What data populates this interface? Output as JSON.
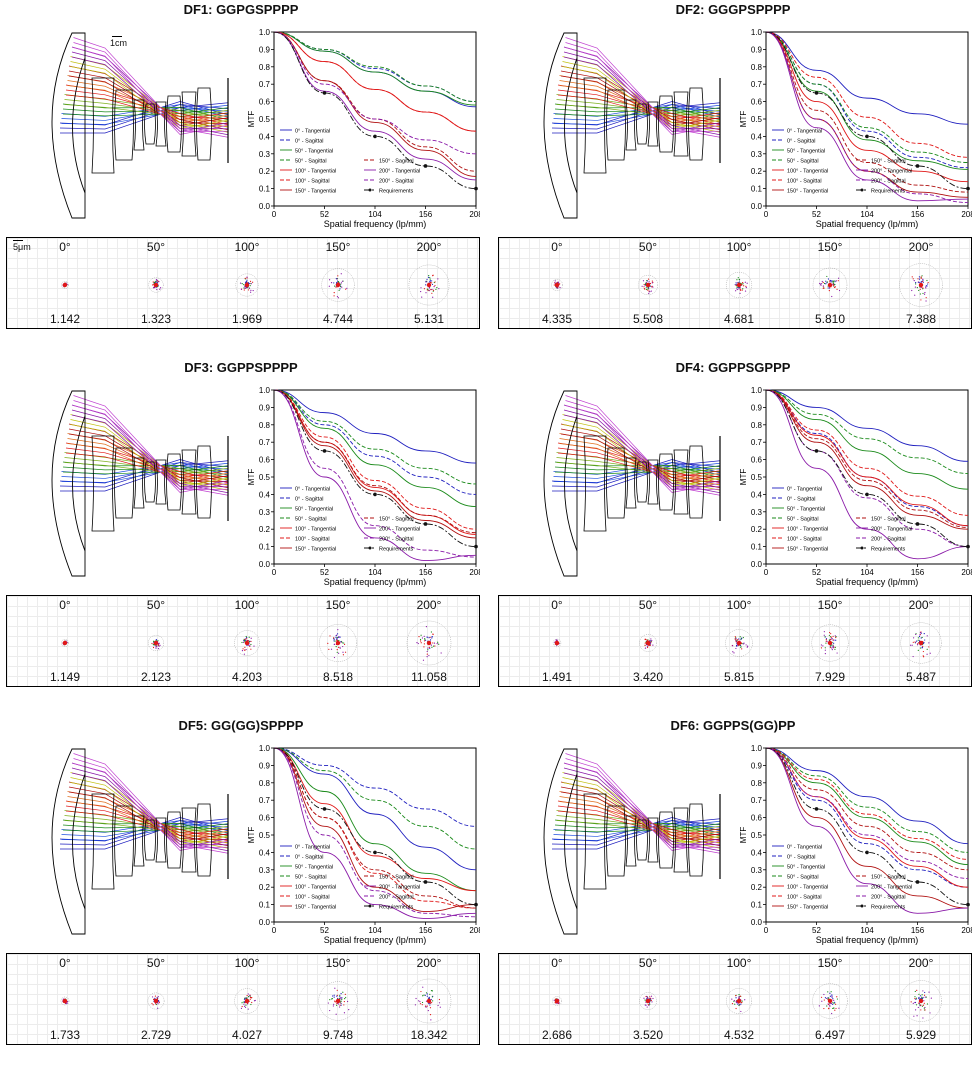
{
  "common": {
    "axis": {
      "xlabel": "Spatial frequency (lp/mm)",
      "ylabel": "MTF",
      "xticks": [
        "0",
        "52",
        "104",
        "156",
        "208"
      ],
      "yticks": [
        "0.0",
        "0.1",
        "0.2",
        "0.3",
        "0.4",
        "0.5",
        "0.6",
        "0.7",
        "0.8",
        "0.9",
        "1.0"
      ]
    },
    "scale_lens": "1cm",
    "scale_spot": "5μm",
    "legend": [
      "0° - Tangential",
      "0° - Sagittal",
      "50° - Tangential",
      "50° - Sagittal",
      "100° - Tangential",
      "100° - Sagittal",
      "150° - Tangential",
      "150° - Sagittal",
      "200° - Tangential",
      "200° - Sagittal",
      "Requirements"
    ],
    "field_angles": [
      "0°",
      "50°",
      "100°",
      "150°",
      "200°"
    ]
  },
  "colors": {
    "field0": "#1f1fbf",
    "field50": "#1a8a1a",
    "field100": "#e01818",
    "field150": "#b01010",
    "field200": "#8a1aa8",
    "requirements": "#111111"
  },
  "panels": [
    {
      "title": "DF1: GGPGSPPPP",
      "spot_rms": [
        "1.142",
        "1.323",
        "1.969",
        "4.744",
        "5.131"
      ]
    },
    {
      "title": "DF2: GGGPSPPPP",
      "spot_rms": [
        "4.335",
        "5.508",
        "4.681",
        "5.810",
        "7.388"
      ]
    },
    {
      "title": "DF3: GGPPSPPPP",
      "spot_rms": [
        "1.149",
        "2.123",
        "4.203",
        "8.518",
        "11.058"
      ]
    },
    {
      "title": "DF4: GGPPSGPPP",
      "spot_rms": [
        "1.491",
        "3.420",
        "5.815",
        "7.929",
        "5.487"
      ]
    },
    {
      "title": "DF5: GG(GG)SPPPP",
      "spot_rms": [
        "1.733",
        "2.729",
        "4.027",
        "9.748",
        "18.342"
      ]
    },
    {
      "title": "DF6: GGPPS(GG)PP",
      "spot_rms": [
        "2.686",
        "3.520",
        "4.532",
        "6.497",
        "5.929"
      ]
    }
  ],
  "chart_data": [
    {
      "type": "line",
      "title": "DF1: GGPGSPPPP",
      "xlabel": "Spatial frequency (lp/mm)",
      "ylabel": "MTF",
      "xlim": [
        0,
        208
      ],
      "ylim": [
        0,
        1
      ],
      "x": [
        0,
        52,
        104,
        156,
        208
      ],
      "series": [
        {
          "name": "0° - Tangential",
          "values": [
            1,
            0.89,
            0.77,
            0.66,
            0.57
          ]
        },
        {
          "name": "0° - Sagittal",
          "values": [
            1,
            0.9,
            0.79,
            0.69,
            0.6
          ]
        },
        {
          "name": "50° - Tangential",
          "values": [
            1,
            0.89,
            0.77,
            0.66,
            0.58
          ]
        },
        {
          "name": "50° - Sagittal",
          "values": [
            1,
            0.9,
            0.8,
            0.69,
            0.6
          ]
        },
        {
          "name": "100° - Tangential",
          "values": [
            1,
            0.83,
            0.67,
            0.54,
            0.43
          ]
        },
        {
          "name": "100° - Sagittal",
          "values": [
            1,
            0.83,
            0.67,
            0.54,
            0.43
          ]
        },
        {
          "name": "150° - Tangential",
          "values": [
            1,
            0.72,
            0.48,
            0.32,
            0.17
          ]
        },
        {
          "name": "150° - Sagittal",
          "values": [
            1,
            0.72,
            0.5,
            0.34,
            0.2
          ]
        },
        {
          "name": "200° - Tangential",
          "values": [
            1,
            0.66,
            0.43,
            0.27,
            0.15
          ]
        },
        {
          "name": "200° - Sagittal",
          "values": [
            1,
            0.7,
            0.5,
            0.38,
            0.3
          ]
        },
        {
          "name": "Requirements",
          "values": [
            1,
            0.65,
            0.4,
            0.23,
            0.1
          ]
        }
      ]
    },
    {
      "type": "line",
      "title": "DF2: GGGPSPPPP",
      "xlabel": "Spatial frequency (lp/mm)",
      "ylabel": "MTF",
      "xlim": [
        0,
        208
      ],
      "ylim": [
        0,
        1
      ],
      "x": [
        0,
        52,
        104,
        156,
        208
      ],
      "series": [
        {
          "name": "0° - Tangential",
          "values": [
            1,
            0.78,
            0.62,
            0.53,
            0.47
          ]
        },
        {
          "name": "0° - Sagittal",
          "values": [
            1,
            0.7,
            0.43,
            0.28,
            0.22
          ]
        },
        {
          "name": "50° - Tangential",
          "values": [
            1,
            0.66,
            0.38,
            0.26,
            0.21
          ]
        },
        {
          "name": "50° - Sagittal",
          "values": [
            1,
            0.7,
            0.45,
            0.31,
            0.25
          ]
        },
        {
          "name": "100° - Tangential",
          "values": [
            1,
            0.6,
            0.32,
            0.2,
            0.14
          ]
        },
        {
          "name": "100° - Sagittal",
          "values": [
            1,
            0.74,
            0.51,
            0.36,
            0.28
          ]
        },
        {
          "name": "150° - Tangential",
          "values": [
            1,
            0.5,
            0.2,
            0.08,
            0.05
          ]
        },
        {
          "name": "150° - Sagittal",
          "values": [
            1,
            0.55,
            0.25,
            0.12,
            0.08
          ]
        },
        {
          "name": "200° - Tangential",
          "values": [
            1,
            0.45,
            0.15,
            0.03,
            0.04
          ]
        },
        {
          "name": "200° - Sagittal",
          "values": [
            1,
            0.5,
            0.2,
            0.07,
            0.02
          ]
        },
        {
          "name": "Requirements",
          "values": [
            1,
            0.65,
            0.4,
            0.23,
            0.1
          ]
        }
      ]
    },
    {
      "type": "line",
      "title": "DF3: GGPPSPPPP",
      "xlabel": "Spatial frequency (lp/mm)",
      "ylabel": "MTF",
      "xlim": [
        0,
        208
      ],
      "ylim": [
        0,
        1
      ],
      "x": [
        0,
        52,
        104,
        156,
        208
      ],
      "series": [
        {
          "name": "0° - Tangential",
          "values": [
            1,
            0.87,
            0.75,
            0.65,
            0.58
          ]
        },
        {
          "name": "0° - Sagittal",
          "values": [
            1,
            0.8,
            0.62,
            0.5,
            0.4
          ]
        },
        {
          "name": "50° - Tangential",
          "values": [
            1,
            0.78,
            0.57,
            0.44,
            0.33
          ]
        },
        {
          "name": "50° - Sagittal",
          "values": [
            1,
            0.82,
            0.66,
            0.55,
            0.46
          ]
        },
        {
          "name": "100° - Tangential",
          "values": [
            1,
            0.7,
            0.44,
            0.28,
            0.17
          ]
        },
        {
          "name": "100° - Sagittal",
          "values": [
            1,
            0.73,
            0.48,
            0.32,
            0.2
          ]
        },
        {
          "name": "150° - Tangential",
          "values": [
            1,
            0.68,
            0.42,
            0.25,
            0.15
          ]
        },
        {
          "name": "150° - Sagittal",
          "values": [
            1,
            0.7,
            0.45,
            0.28,
            0.18
          ]
        },
        {
          "name": "200° - Tangential",
          "values": [
            1,
            0.5,
            0.15,
            0.02,
            0.05
          ]
        },
        {
          "name": "200° - Sagittal",
          "values": [
            1,
            0.55,
            0.22,
            0.08,
            0.04
          ]
        },
        {
          "name": "Requirements",
          "values": [
            1,
            0.65,
            0.4,
            0.23,
            0.1
          ]
        }
      ]
    },
    {
      "type": "line",
      "title": "DF4: GGPPSGPPP",
      "xlabel": "Spatial frequency (lp/mm)",
      "ylabel": "MTF",
      "xlim": [
        0,
        208
      ],
      "ylim": [
        0,
        1
      ],
      "x": [
        0,
        52,
        104,
        156,
        208
      ],
      "series": [
        {
          "name": "0° - Tangential",
          "values": [
            1,
            0.9,
            0.78,
            0.68,
            0.59
          ]
        },
        {
          "name": "0° - Sagittal",
          "values": [
            1,
            0.75,
            0.5,
            0.33,
            0.22
          ]
        },
        {
          "name": "50° - Tangential",
          "values": [
            1,
            0.83,
            0.65,
            0.52,
            0.43
          ]
        },
        {
          "name": "50° - Sagittal",
          "values": [
            1,
            0.86,
            0.72,
            0.61,
            0.52
          ]
        },
        {
          "name": "100° - Tangential",
          "values": [
            1,
            0.74,
            0.5,
            0.34,
            0.22
          ]
        },
        {
          "name": "100° - Sagittal",
          "values": [
            1,
            0.77,
            0.55,
            0.39,
            0.28
          ]
        },
        {
          "name": "150° - Tangential",
          "values": [
            1,
            0.7,
            0.45,
            0.28,
            0.2
          ]
        },
        {
          "name": "150° - Sagittal",
          "values": [
            1,
            0.72,
            0.48,
            0.31,
            0.21
          ]
        },
        {
          "name": "200° - Tangential",
          "values": [
            1,
            0.55,
            0.2,
            0.03,
            0.1
          ]
        },
        {
          "name": "200° - Sagittal",
          "values": [
            1,
            0.65,
            0.38,
            0.2,
            0.1
          ]
        },
        {
          "name": "Requirements",
          "values": [
            1,
            0.65,
            0.4,
            0.23,
            0.1
          ]
        }
      ]
    },
    {
      "type": "line",
      "title": "DF5: GG(GG)SPPPP",
      "xlabel": "Spatial frequency (lp/mm)",
      "ylabel": "MTF",
      "xlim": [
        0,
        208
      ],
      "ylim": [
        0,
        1
      ],
      "x": [
        0,
        52,
        104,
        156,
        208
      ],
      "series": [
        {
          "name": "0° - Tangential",
          "values": [
            1,
            0.85,
            0.62,
            0.43,
            0.3
          ]
        },
        {
          "name": "0° - Sagittal",
          "values": [
            1,
            0.9,
            0.77,
            0.65,
            0.55
          ]
        },
        {
          "name": "50° - Tangential",
          "values": [
            1,
            0.75,
            0.45,
            0.28,
            0.18
          ]
        },
        {
          "name": "50° - Sagittal",
          "values": [
            1,
            0.87,
            0.7,
            0.55,
            0.42
          ]
        },
        {
          "name": "100° - Tangential",
          "values": [
            1,
            0.68,
            0.38,
            0.25,
            0.18
          ]
        },
        {
          "name": "100° - Sagittal",
          "values": [
            1,
            0.6,
            0.28,
            0.12,
            0.08
          ]
        },
        {
          "name": "150° - Tangential",
          "values": [
            1,
            0.55,
            0.2,
            0.06,
            0.1
          ]
        },
        {
          "name": "150° - Sagittal",
          "values": [
            1,
            0.6,
            0.3,
            0.15,
            0.08
          ]
        },
        {
          "name": "200° - Tangential",
          "values": [
            1,
            0.4,
            0.1,
            0.02,
            0.05
          ]
        },
        {
          "name": "200° - Sagittal",
          "values": [
            1,
            0.5,
            0.18,
            0.05,
            0.03
          ]
        },
        {
          "name": "Requirements",
          "values": [
            1,
            0.65,
            0.4,
            0.23,
            0.1
          ]
        }
      ]
    },
    {
      "type": "line",
      "title": "DF6: GGPPS(GG)PP",
      "xlabel": "Spatial frequency (lp/mm)",
      "ylabel": "MTF",
      "xlim": [
        0,
        208
      ],
      "ylim": [
        0,
        1
      ],
      "x": [
        0,
        52,
        104,
        156,
        208
      ],
      "series": [
        {
          "name": "0° - Tangential",
          "values": [
            1,
            0.87,
            0.72,
            0.58,
            0.45
          ]
        },
        {
          "name": "0° - Sagittal",
          "values": [
            1,
            0.7,
            0.45,
            0.3,
            0.2
          ]
        },
        {
          "name": "50° - Tangential",
          "values": [
            1,
            0.8,
            0.6,
            0.46,
            0.33
          ]
        },
        {
          "name": "50° - Sagittal",
          "values": [
            1,
            0.84,
            0.66,
            0.52,
            0.4
          ]
        },
        {
          "name": "100° - Tangential",
          "values": [
            1,
            0.72,
            0.48,
            0.32,
            0.2
          ]
        },
        {
          "name": "100° - Sagittal",
          "values": [
            1,
            0.82,
            0.62,
            0.48,
            0.36
          ]
        },
        {
          "name": "150° - Tangential",
          "values": [
            1,
            0.6,
            0.32,
            0.15,
            0.08
          ]
        },
        {
          "name": "150° - Sagittal",
          "values": [
            1,
            0.76,
            0.55,
            0.4,
            0.3
          ]
        },
        {
          "name": "200° - Tangential",
          "values": [
            1,
            0.55,
            0.22,
            0.05,
            0.08
          ]
        },
        {
          "name": "200° - Sagittal",
          "values": [
            1,
            0.72,
            0.5,
            0.35,
            0.25
          ]
        },
        {
          "name": "Requirements",
          "values": [
            1,
            0.65,
            0.4,
            0.23,
            0.1
          ]
        }
      ]
    }
  ]
}
